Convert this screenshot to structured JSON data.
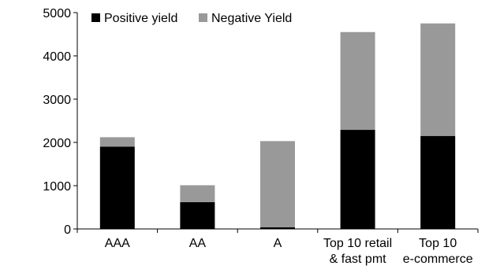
{
  "chart_data": {
    "type": "bar",
    "stacked": true,
    "categories": [
      [
        "AAA"
      ],
      [
        "AA"
      ],
      [
        "A"
      ],
      [
        "Top 10 retail",
        "& fast pmt"
      ],
      [
        "Top 10",
        "e-commerce"
      ]
    ],
    "series": [
      {
        "name": "Positive yield",
        "color": "#000000",
        "values": [
          1900,
          620,
          40,
          2290,
          2150
        ]
      },
      {
        "name": "Negative Yield",
        "color": "#999999",
        "values": [
          220,
          390,
          1990,
          2260,
          2600
        ]
      }
    ],
    "ylim": [
      0,
      5000
    ],
    "yticks": [
      "0",
      "1000",
      "2000",
      "3000",
      "4000",
      "5000"
    ],
    "legend_position": "top-left",
    "grid": false
  }
}
